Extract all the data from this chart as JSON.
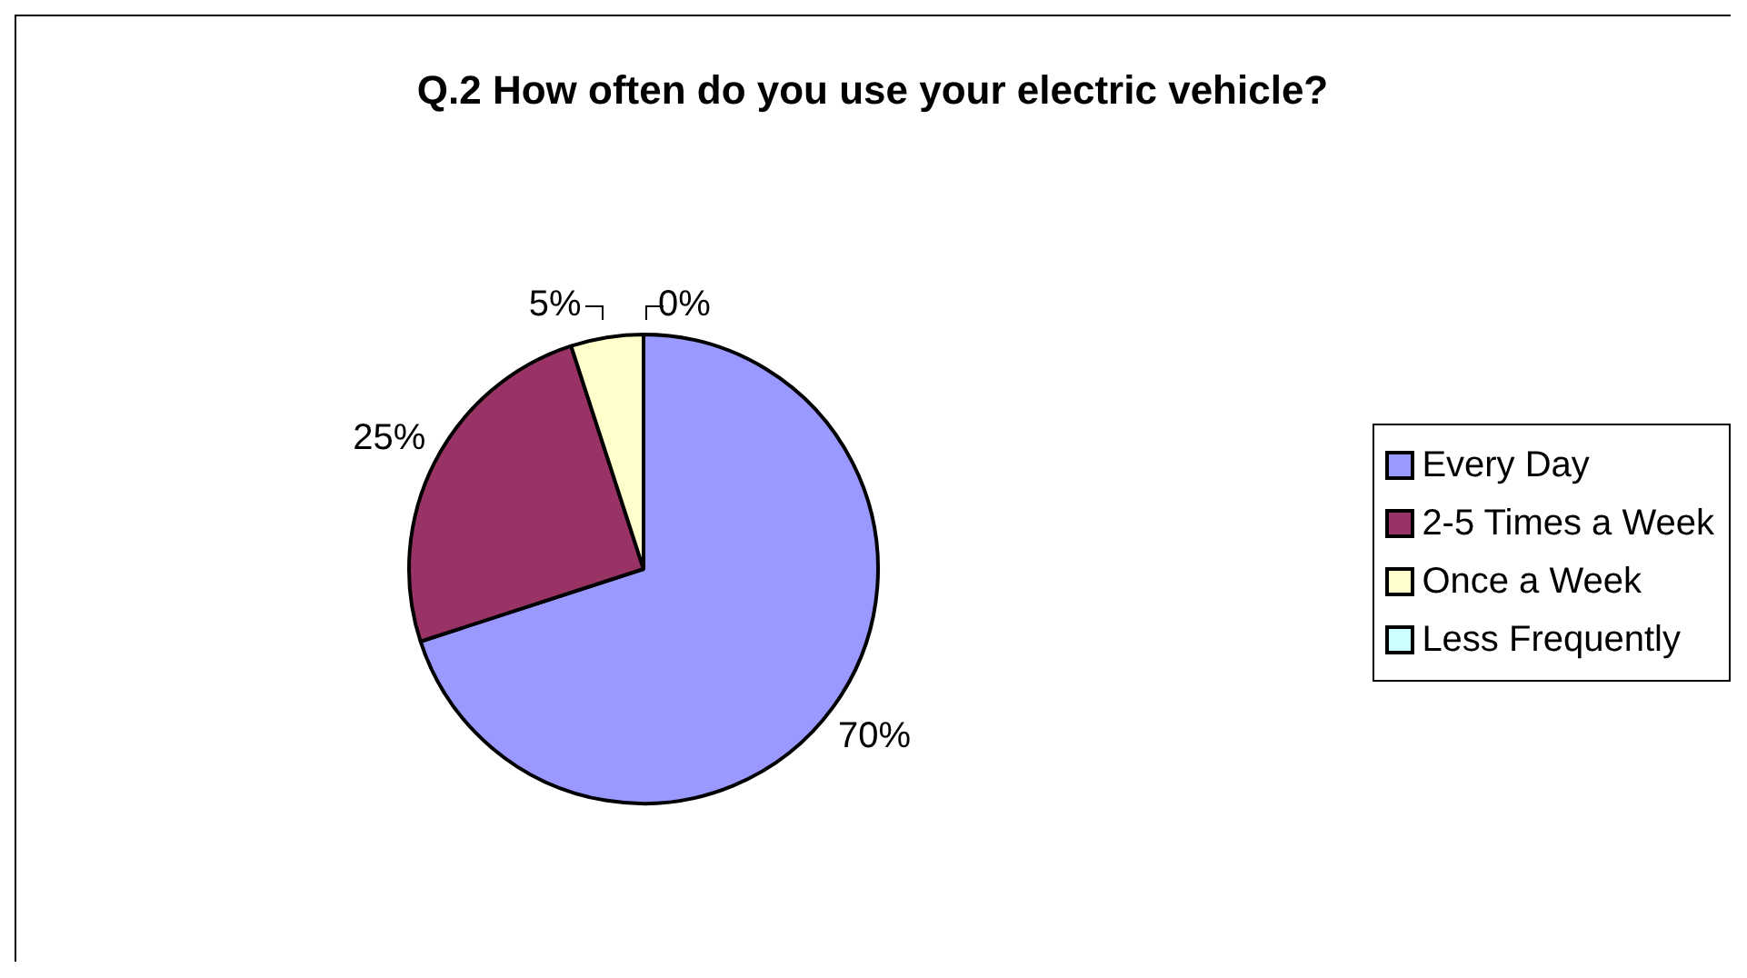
{
  "chart_data": {
    "type": "pie",
    "title": "Q.2 How often do you use your electric vehicle?",
    "categories": [
      "Every Day",
      "2-5 Times a Week",
      "Once a Week",
      "Less Frequently"
    ],
    "values": [
      70,
      25,
      5,
      0
    ],
    "value_labels": [
      "70%",
      "25%",
      "5%",
      "0%"
    ],
    "colors": [
      "#9999ff",
      "#993366",
      "#ffffcc",
      "#ccffff"
    ],
    "legend": "right"
  }
}
